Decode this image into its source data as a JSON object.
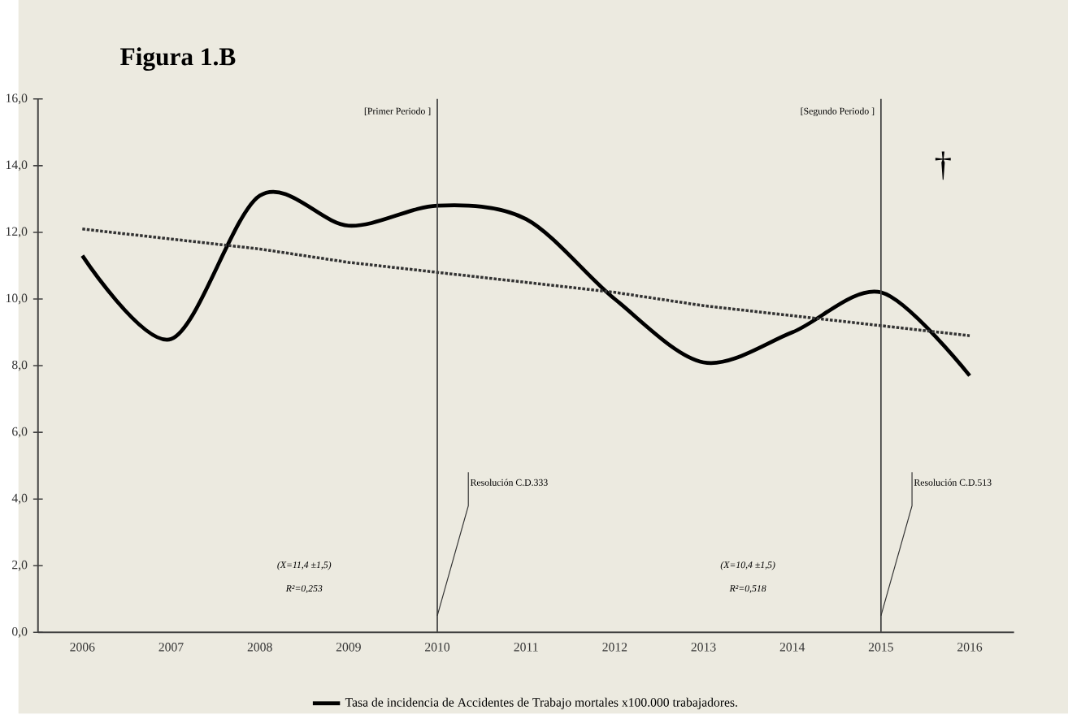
{
  "chart_data": {
    "type": "line",
    "title": "Figura 1.B",
    "categories": [
      "2006",
      "2007",
      "2008",
      "2009",
      "2010",
      "2011",
      "2012",
      "2013",
      "2014",
      "2015",
      "2016"
    ],
    "series": [
      {
        "name": "Tasa de incidencia de Accidentes de Trabajo mortales x100.000 trabajadores.",
        "color": "#000000",
        "line_style": "solid",
        "values": [
          11.3,
          8.8,
          13.1,
          12.2,
          12.8,
          12.4,
          10.0,
          8.1,
          9.0,
          10.2,
          7.7
        ]
      },
      {
        "color": "#333333",
        "line_style": "dotted",
        "values": [
          12.1,
          11.8,
          11.5,
          11.1,
          10.8,
          10.5,
          10.2,
          9.8,
          9.5,
          9.2,
          8.9
        ]
      }
    ],
    "ylim": [
      0,
      16
    ],
    "yticks": [
      {
        "value": 0,
        "label": "0,0"
      },
      {
        "value": 2,
        "label": "2,0"
      },
      {
        "value": 4,
        "label": "4,0"
      },
      {
        "value": 6,
        "label": "6,0"
      },
      {
        "value": 8,
        "label": "8,0"
      },
      {
        "value": 10,
        "label": "10,0"
      },
      {
        "value": 12,
        "label": "12,0"
      },
      {
        "value": 14,
        "label": "14,0"
      },
      {
        "value": 16,
        "label": "16,0"
      }
    ],
    "ref_lines": [
      {
        "axis": "x",
        "value": "2010",
        "label": "[Primer Periodo ]",
        "color": "#444444",
        "line_style": "solid"
      },
      {
        "axis": "x",
        "value": "2015",
        "label": "[Segundo Periodo ]",
        "color": "#444444",
        "line_style": "solid"
      }
    ],
    "annotations": [
      {
        "text": "Resolución C.D.333",
        "x": "2010",
        "y": 0.5
      },
      {
        "text": "Resolución C.D.513",
        "x": "2015",
        "y": 0.5
      },
      "(X=11,4 ±1,5)",
      "R²=0,253",
      "(X=10,4 ±1,5)",
      "R²=0,518",
      "†"
    ],
    "grid": false,
    "legend": "bottom",
    "marker": "none"
  }
}
